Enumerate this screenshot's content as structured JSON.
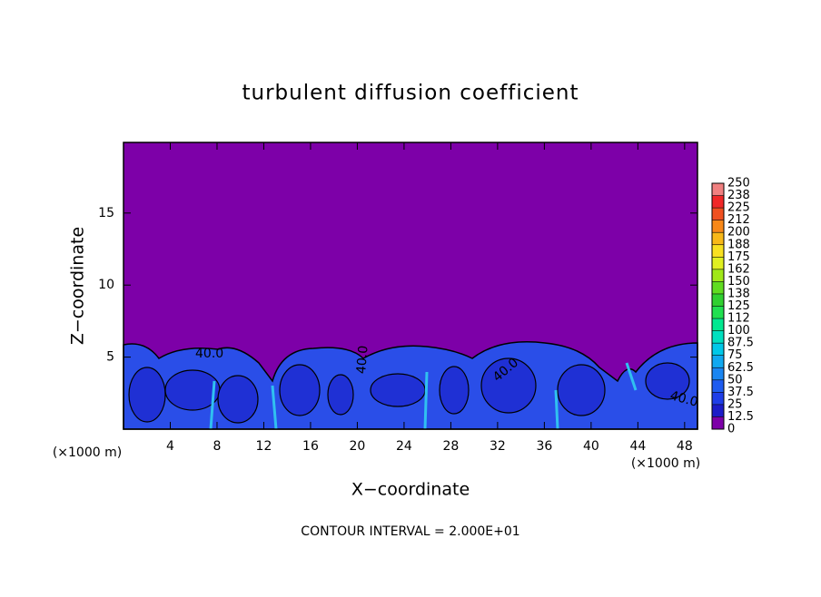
{
  "chart_data": {
    "type": "contour",
    "title": "turbulent diffusion coefficient",
    "xlabel": "X−coordinate",
    "ylabel": "Z−coordinate",
    "x_unit": "(×1000 m)",
    "y_unit": "(×1000 m)",
    "footnote": "CONTOUR INTERVAL = 2.000E+01",
    "contour_labels": [
      "40.0",
      "40.0",
      "40.0",
      "40.0"
    ],
    "xlim": [
      0,
      49.1
    ],
    "xticks": [
      4,
      8,
      12,
      16,
      20,
      24,
      28,
      32,
      36,
      40,
      44,
      48
    ],
    "ylim": [
      0,
      19.9
    ],
    "yticks": [
      5,
      10,
      15
    ],
    "colorbar": {
      "lim": [
        0,
        250
      ],
      "ticks": [
        0,
        12.5,
        25,
        37.5,
        50,
        62.5,
        75,
        87.5,
        100,
        {
          "value": 112.5,
          "label": "112"
        },
        125,
        {
          "value": 137.5,
          "label": "138"
        },
        150,
        {
          "value": 162.5,
          "label": "162"
        },
        175,
        {
          "value": 187.5,
          "label": "188"
        },
        200,
        {
          "value": 212.5,
          "label": "212"
        },
        225,
        {
          "value": 237.5,
          "label": "238"
        },
        250
      ],
      "colors": [
        "#7d00a8",
        "#1c1cc8",
        "#1f3ee8",
        "#1e5cf0",
        "#1a86f2",
        "#10a8f0",
        "#00c8e8",
        "#00e0c0",
        "#00e890",
        "#20e050",
        "#30d030",
        "#60dc20",
        "#a0e818",
        "#e0f020",
        "#f8e020",
        "#f8b818",
        "#f88818",
        "#f05020",
        "#f02828",
        "#f08080"
      ]
    }
  }
}
